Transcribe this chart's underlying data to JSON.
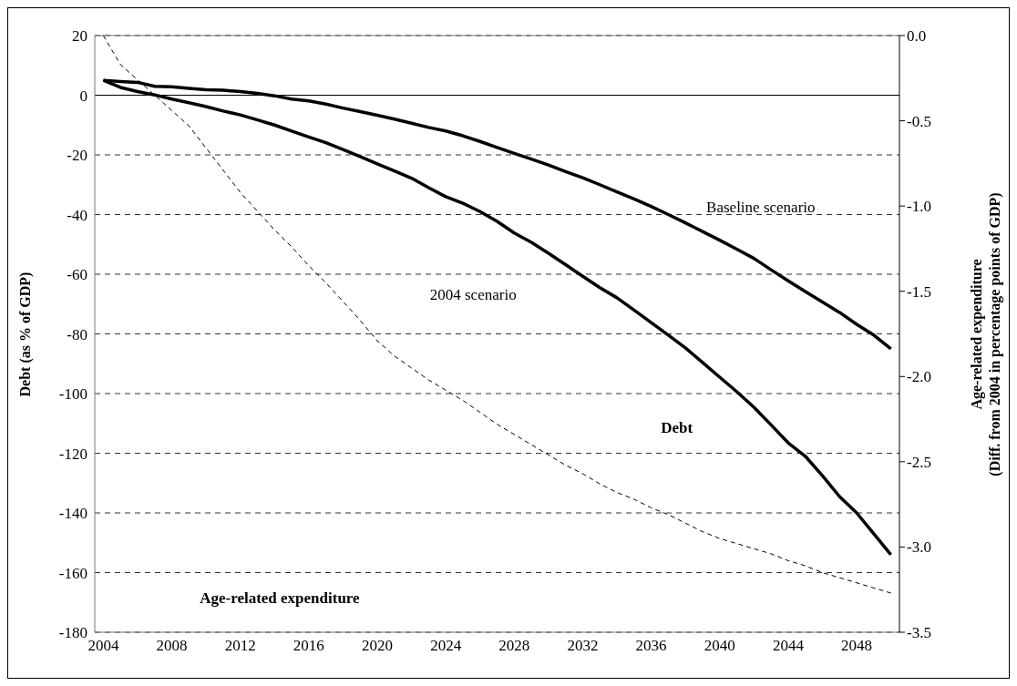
{
  "chart_data": {
    "type": "line",
    "ylabel": "Debt (as % of GDP)",
    "y2label": "Age-related  expenditure\n(Diff. from 2004 in percentage points of GDP)",
    "x": [
      2004,
      2005,
      2006,
      2007,
      2008,
      2009,
      2010,
      2011,
      2012,
      2013,
      2014,
      2015,
      2016,
      2017,
      2018,
      2019,
      2020,
      2021,
      2022,
      2023,
      2024,
      2025,
      2026,
      2027,
      2028,
      2029,
      2030,
      2031,
      2032,
      2033,
      2034,
      2035,
      2036,
      2037,
      2038,
      2039,
      2040,
      2041,
      2042,
      2043,
      2044,
      2045,
      2046,
      2047,
      2048,
      2049,
      2050
    ],
    "series": [
      {
        "name": "Baseline scenario",
        "color": "#000000",
        "values": [
          5.0,
          4.6,
          4.3,
          3.0,
          2.8,
          2.3,
          1.8,
          1.7,
          1.2,
          0.6,
          -0.2,
          -1.3,
          -1.9,
          -3.0,
          -4.3,
          -5.5,
          -6.7,
          -8.0,
          -9.4,
          -10.8,
          -12.0,
          -13.6,
          -15.5,
          -17.5,
          -19.5,
          -21.4,
          -23.4,
          -25.6,
          -27.7,
          -30.0,
          -32.4,
          -34.8,
          -37.3,
          -40.0,
          -42.8,
          -45.7,
          -48.6,
          -51.6,
          -54.7,
          -58.5,
          -62.2,
          -65.8,
          -69.3,
          -72.8,
          -76.8,
          -80.4,
          -85.0
        ]
      },
      {
        "name": "2004 scenario",
        "color": "#000000",
        "values": [
          5.0,
          2.6,
          1.2,
          0.1,
          -1.3,
          -2.5,
          -3.8,
          -5.3,
          -6.6,
          -8.3,
          -10.0,
          -12.0,
          -14.0,
          -15.9,
          -18.2,
          -20.6,
          -23.0,
          -25.4,
          -27.8,
          -31.0,
          -34.0,
          -36.2,
          -39.0,
          -42.3,
          -46.2,
          -49.3,
          -53.0,
          -56.8,
          -60.7,
          -64.5,
          -67.9,
          -72.0,
          -76.2,
          -80.4,
          -84.7,
          -89.6,
          -94.5,
          -99.4,
          -104.6,
          -110.5,
          -116.5,
          -121.0,
          -127.5,
          -134.5,
          -140.0,
          -147.0,
          -154.0
        ]
      },
      {
        "color": "#000000",
        "axis": "y2",
        "line_style": "dashed",
        "values": [
          0.0,
          -0.17,
          -0.26,
          -0.35,
          -0.44,
          -0.53,
          -0.66,
          -0.79,
          -0.92,
          -1.03,
          -1.14,
          -1.24,
          -1.35,
          -1.45,
          -1.56,
          -1.67,
          -1.79,
          -1.88,
          -1.95,
          -2.02,
          -2.08,
          -2.14,
          -2.21,
          -2.28,
          -2.34,
          -2.4,
          -2.46,
          -2.52,
          -2.57,
          -2.63,
          -2.68,
          -2.72,
          -2.77,
          -2.81,
          -2.86,
          -2.91,
          -2.95,
          -2.98,
          -3.01,
          -3.04,
          -3.08,
          -3.11,
          -3.15,
          -3.18,
          -3.21,
          -3.24,
          -3.27
        ]
      }
    ],
    "xlim": [
      2003.5,
      2050.5
    ],
    "xticks": [
      2004,
      2008,
      2012,
      2016,
      2020,
      2024,
      2028,
      2032,
      2036,
      2040,
      2044,
      2048
    ],
    "ylim": [
      -180,
      20
    ],
    "yticks": [
      20,
      0,
      -20,
      -40,
      -60,
      -80,
      -100,
      -120,
      -140,
      -160,
      -180
    ],
    "y2lim": [
      -3.5,
      0
    ],
    "y2ticks": [
      {
        "value": 0,
        "label": "0.0"
      },
      {
        "value": -0.5,
        "label": "-0.5"
      },
      {
        "value": -1,
        "label": "-1.0"
      },
      {
        "value": -1.5,
        "label": "-1.5"
      },
      {
        "value": -2,
        "label": "-2.0"
      },
      {
        "value": -2.5,
        "label": "-2.5"
      },
      {
        "value": -3,
        "label": "-3.0"
      },
      {
        "value": -3.5,
        "label": "-3.5"
      }
    ],
    "ref_lines": [
      {
        "axis": "y",
        "value": 0,
        "color": "#000000",
        "line_style": "solid"
      }
    ],
    "annotations": [
      "Debt",
      "Age-related expenditure"
    ],
    "grid": "y",
    "marker": "none",
    "line_style": "solid"
  }
}
